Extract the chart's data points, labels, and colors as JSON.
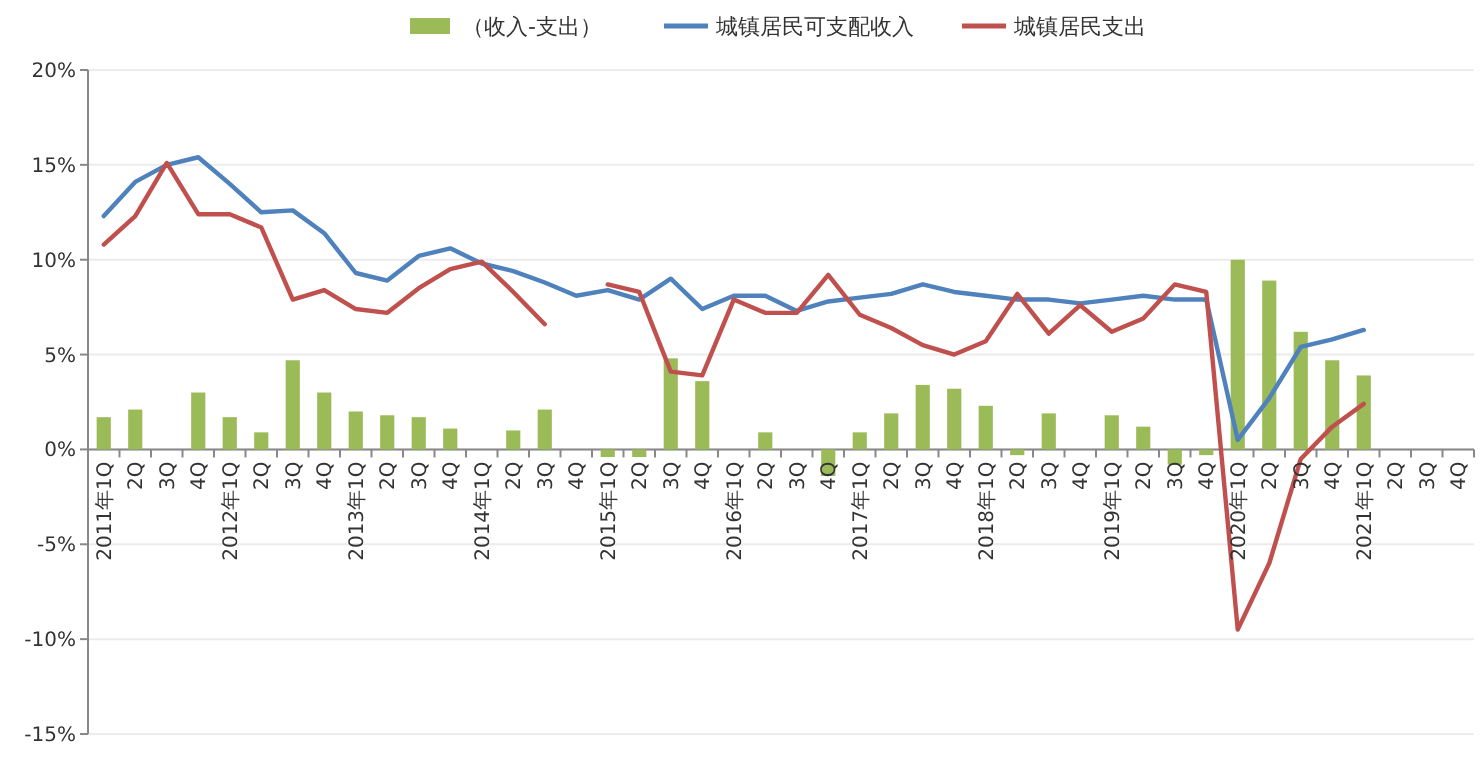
{
  "chart_data": {
    "type": "bar",
    "categories": [
      "2011年1Q",
      "2Q",
      "3Q",
      "4Q",
      "2012年1Q",
      "2Q",
      "3Q",
      "4Q",
      "2013年1Q",
      "2Q",
      "3Q",
      "4Q",
      "2014年1Q",
      "2Q",
      "3Q",
      "4Q",
      "2015年1Q",
      "2Q",
      "3Q",
      "4Q",
      "2016年1Q",
      "2Q",
      "3Q",
      "4Q",
      "2017年1Q",
      "2Q",
      "3Q",
      "4Q",
      "2018年1Q",
      "2Q",
      "3Q",
      "4Q",
      "2019年1Q",
      "2Q",
      "3Q",
      "4Q",
      "2020年1Q",
      "2Q",
      "3Q",
      "4Q",
      "2021年1Q",
      "2Q",
      "3Q",
      "4Q"
    ],
    "series": [
      {
        "name": "（收入-支出）",
        "color": "#9bbb59",
        "values": [
          1.7,
          2.1,
          null,
          3.0,
          1.7,
          0.9,
          4.7,
          3.0,
          2.0,
          1.8,
          1.7,
          1.1,
          null,
          1.0,
          2.1,
          null,
          -0.4,
          -0.4,
          4.8,
          3.6,
          null,
          0.9,
          null,
          -1.4,
          0.9,
          1.9,
          3.4,
          3.2,
          2.3,
          -0.3,
          1.9,
          null,
          1.8,
          1.2,
          -0.8,
          -0.3,
          10.0,
          8.9,
          6.2,
          4.7,
          3.9,
          null,
          null,
          null
        ]
      },
      {
        "type": "line",
        "name": "城镇居民可支配收入",
        "color": "#4f81bd",
        "values": [
          12.3,
          14.1,
          15.0,
          15.4,
          14.0,
          12.5,
          12.6,
          11.4,
          9.3,
          8.9,
          10.2,
          10.6,
          9.8,
          9.4,
          8.8,
          8.1,
          8.4,
          7.9,
          9.0,
          7.4,
          8.1,
          8.1,
          7.3,
          7.8,
          8.0,
          8.2,
          8.7,
          8.3,
          8.1,
          7.9,
          7.9,
          7.7,
          7.9,
          8.1,
          7.9,
          7.9,
          0.5,
          2.7,
          5.4,
          5.8,
          6.3,
          null,
          null,
          null
        ]
      },
      {
        "type": "line",
        "name": "城镇居民支出",
        "color": "#c0504d",
        "values": [
          10.8,
          12.3,
          15.1,
          12.4,
          12.4,
          11.7,
          7.9,
          8.4,
          7.4,
          7.2,
          8.5,
          9.5,
          9.9,
          8.3,
          6.6,
          null,
          8.7,
          8.3,
          4.1,
          3.9,
          7.9,
          7.2,
          7.2,
          9.2,
          7.1,
          6.4,
          5.5,
          5.0,
          5.7,
          8.2,
          6.1,
          7.6,
          6.2,
          6.9,
          8.7,
          8.3,
          -9.5,
          -6.0,
          -0.5,
          1.2,
          2.4,
          null,
          null,
          null
        ]
      }
    ],
    "ylim": [
      -15,
      20
    ],
    "yticks": [
      {
        "value": -15,
        "label": "-15%"
      },
      {
        "value": -10,
        "label": "-10%"
      },
      {
        "value": -5,
        "label": "-5%"
      },
      {
        "value": 0,
        "label": "0%"
      },
      {
        "value": 5,
        "label": "5%"
      },
      {
        "value": 10,
        "label": "10%"
      },
      {
        "value": 15,
        "label": "15%"
      },
      {
        "value": 20,
        "label": "20%"
      }
    ],
    "grid": "y",
    "legend": "top"
  }
}
